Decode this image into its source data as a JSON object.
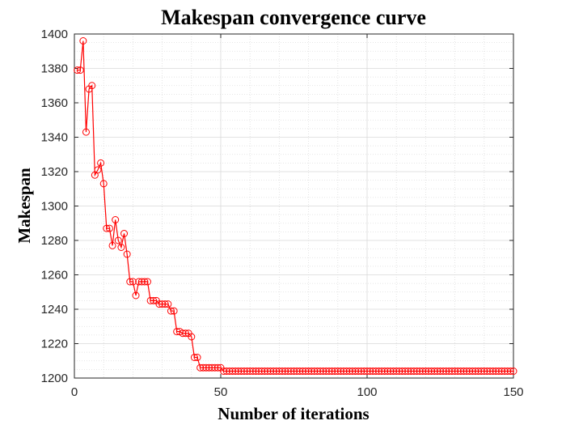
{
  "chart_data": {
    "type": "line",
    "title": "Makespan convergence curve",
    "xlabel": "Number of iterations",
    "ylabel": "Makespan",
    "xlim": [
      0,
      150
    ],
    "ylim": [
      1200,
      1400
    ],
    "xticks": [
      0,
      50,
      100,
      150
    ],
    "yticks": [
      1200,
      1220,
      1240,
      1260,
      1280,
      1300,
      1320,
      1340,
      1360,
      1380,
      1400
    ],
    "grid": true,
    "legend": "none",
    "marker": "circle",
    "colors": {
      "series": "#ff0000",
      "major_grid": "#d9d9d9",
      "minor_grid": "#dddddd",
      "axes": "#262626"
    },
    "series": [
      {
        "x": [
          1,
          2,
          3,
          4,
          5,
          6,
          7,
          8,
          9,
          10,
          11,
          12,
          13,
          14,
          15,
          16,
          17,
          18,
          19,
          20,
          21,
          22,
          23,
          24,
          25,
          26,
          27,
          28,
          29,
          30,
          31,
          32,
          33,
          34,
          35,
          36,
          37,
          38,
          39,
          40,
          41,
          42,
          43,
          44,
          45,
          46,
          47,
          48,
          49,
          50,
          51,
          52,
          53,
          54,
          55,
          56,
          57,
          58,
          59,
          60,
          61,
          62,
          63,
          64,
          65,
          66,
          67,
          68,
          69,
          70,
          71,
          72,
          73,
          74,
          75,
          76,
          77,
          78,
          79,
          80,
          81,
          82,
          83,
          84,
          85,
          86,
          87,
          88,
          89,
          90,
          91,
          92,
          93,
          94,
          95,
          96,
          97,
          98,
          99,
          100,
          101,
          102,
          103,
          104,
          105,
          106,
          107,
          108,
          109,
          110,
          111,
          112,
          113,
          114,
          115,
          116,
          117,
          118,
          119,
          120,
          121,
          122,
          123,
          124,
          125,
          126,
          127,
          128,
          129,
          130,
          131,
          132,
          133,
          134,
          135,
          136,
          137,
          138,
          139,
          140,
          141,
          142,
          143,
          144,
          145,
          146,
          147,
          148,
          149,
          150
        ],
        "y": [
          1379,
          1379,
          1396,
          1343,
          1368,
          1370,
          1318,
          1321,
          1325,
          1313,
          1287,
          1287,
          1277,
          1292,
          1280,
          1276,
          1284,
          1272,
          1256,
          1256,
          1248,
          1256,
          1256,
          1256,
          1256,
          1245,
          1245,
          1245,
          1243,
          1243,
          1243,
          1243,
          1239,
          1239,
          1227,
          1227,
          1226,
          1226,
          1226,
          1224,
          1212,
          1212,
          1206,
          1206,
          1206,
          1206,
          1206,
          1206,
          1206,
          1206,
          1204,
          1204,
          1204,
          1204,
          1204,
          1204,
          1204,
          1204,
          1204,
          1204,
          1204,
          1204,
          1204,
          1204,
          1204,
          1204,
          1204,
          1204,
          1204,
          1204,
          1204,
          1204,
          1204,
          1204,
          1204,
          1204,
          1204,
          1204,
          1204,
          1204,
          1204,
          1204,
          1204,
          1204,
          1204,
          1204,
          1204,
          1204,
          1204,
          1204,
          1204,
          1204,
          1204,
          1204,
          1204,
          1204,
          1204,
          1204,
          1204,
          1204,
          1204,
          1204,
          1204,
          1204,
          1204,
          1204,
          1204,
          1204,
          1204,
          1204,
          1204,
          1204,
          1204,
          1204,
          1204,
          1204,
          1204,
          1204,
          1204,
          1204,
          1204,
          1204,
          1204,
          1204,
          1204,
          1204,
          1204,
          1204,
          1204,
          1204,
          1204,
          1204,
          1204,
          1204,
          1204,
          1204,
          1204,
          1204,
          1204,
          1204,
          1204,
          1204,
          1204,
          1204,
          1204,
          1204,
          1204,
          1204,
          1204,
          1204
        ]
      }
    ]
  }
}
